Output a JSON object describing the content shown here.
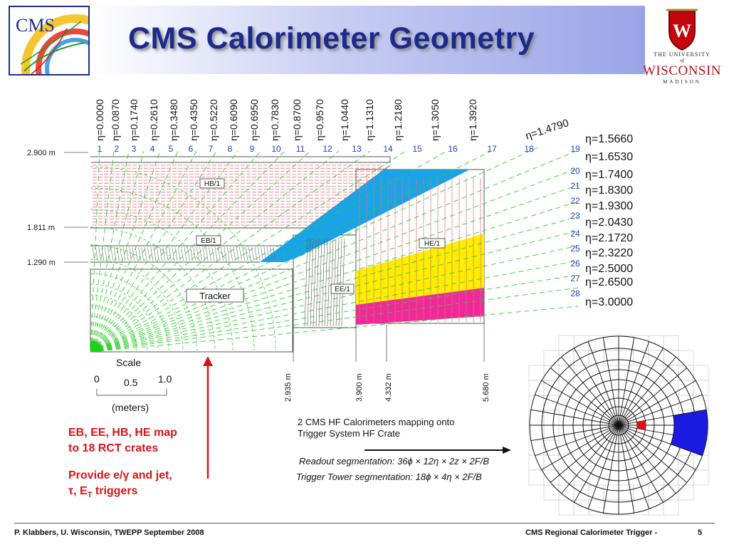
{
  "title": "CMS Calorimeter Geometry",
  "logos": {
    "cms_text": "CMS",
    "uw_line1": "THE UNIVERSITY",
    "uw_line2": "of",
    "uw_line3": "WISCONSIN",
    "uw_line4": "MADISON"
  },
  "eta_top": [
    "η=0.0000",
    "η=0.0870",
    "η=0.1740",
    "η=0.2610",
    "η=0.3480",
    "η=0.4350",
    "η=0.5220",
    "η=0.6090",
    "η=0.6950",
    "η=0.7830",
    "η=0.8700",
    "η=0.9570",
    "η=1.0440",
    "η=1.1310",
    "η=1.2180",
    "η=1.3050",
    "η=1.3920"
  ],
  "eta_diag": "η=1.4790",
  "eta_right": [
    "η=1.5660",
    "η=1.6530",
    "η=1.7400",
    "η=1.8300",
    "η=1.9300",
    "η=2.0430",
    "η=2.1720",
    "η=2.3220",
    "η=2.5000",
    "η=2.6500",
    "η=3.0000"
  ],
  "tower_top": [
    "1",
    "2",
    "3",
    "4",
    "5",
    "6",
    "7",
    "8",
    "9",
    "10",
    "11",
    "12",
    "13",
    "14",
    "15",
    "16",
    "17",
    "18"
  ],
  "tower_right": [
    "19",
    "20",
    "21",
    "22",
    "23",
    "24",
    "25",
    "26",
    "27",
    "28"
  ],
  "radii": [
    "2.900 m",
    "1.811 m",
    "1.290 m"
  ],
  "z_positions": [
    "2.935 m",
    "3.900 m",
    "4.332 m",
    "5.680 m"
  ],
  "regions": [
    "HB/1",
    "EB/1",
    "HE/1",
    "EE/1",
    "Tracker"
  ],
  "scale": {
    "title": "Scale",
    "tick0": "0",
    "tick1": "0.5",
    "tick2": "1.0",
    "unit": "(meters)"
  },
  "notes": {
    "red1a": "EB, EE, HB, HE map",
    "red1b": "to 18 RCT crates",
    "red2a": "Provide e/γ and jet,",
    "red2b": "τ, E",
    "red2b_sub": "T",
    "red2b_end": " triggers",
    "hf1": "2 CMS HF Calorimeters mapping onto",
    "hf2": "Trigger System HF Crate",
    "readout": "Readout  segmentation:  36ϕ × 12η × 2z × 2F/B",
    "trigger": "Trigger Tower  segmentation: 18ϕ × 4η × 2F/B"
  },
  "footer": {
    "left": "P. Klabbers, U. Wisconsin, TWEPP September 2008",
    "right": "CMS Regional Calorimeter Trigger -",
    "page": "5"
  },
  "colors": {
    "title": "#1c2a8c",
    "eta_lines": "#33cc33",
    "hcal_lines": "#e56b7a",
    "orange": "#e09a2a",
    "cyan": "#1aa3e6",
    "yellow": "#ffee00",
    "magenta": "#f0289a",
    "tower_numbers": "#1b3fc4",
    "red_note": "#d1161b",
    "hf_red": "#e01010",
    "hf_blue": "#1a1ae0"
  }
}
